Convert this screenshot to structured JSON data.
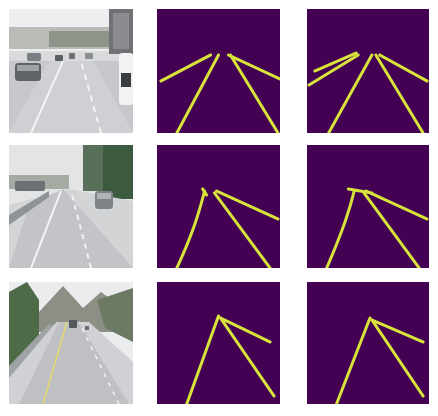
{
  "figure": {
    "rows": [
      {
        "row_index": 1,
        "scene": "road-photo-multilane-highway",
        "panels": [
          "input-photo",
          "ground-truth-lane-mask",
          "predicted-lane-mask"
        ]
      },
      {
        "row_index": 2,
        "scene": "road-photo-highway-with-trees",
        "panels": [
          "input-photo",
          "ground-truth-lane-mask",
          "predicted-lane-mask"
        ]
      },
      {
        "row_index": 3,
        "scene": "road-photo-mountain-highway",
        "panels": [
          "input-photo",
          "ground-truth-lane-mask",
          "predicted-lane-mask"
        ]
      }
    ]
  },
  "colors": {
    "mask_background": "#440154",
    "lane_line": "#d7e43a",
    "sky": "#e6e8ea",
    "road": "#cfd0d3",
    "road_dark": "#b8b9bd",
    "tree": "#3c5a3e",
    "lane_paint": "#f4f4f4",
    "page": "#ffffff"
  }
}
